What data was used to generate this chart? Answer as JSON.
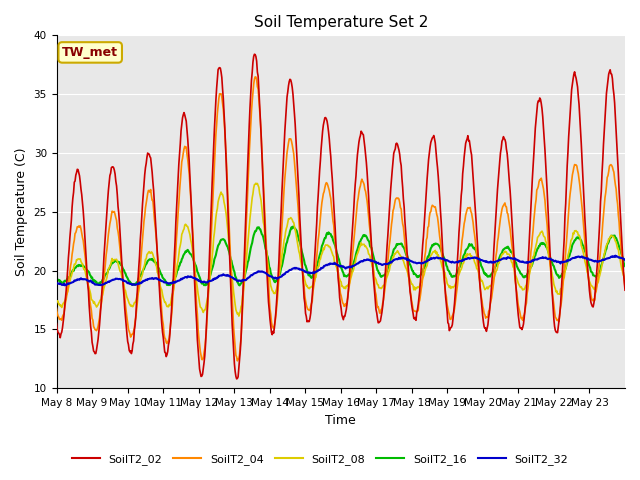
{
  "title": "Soil Temperature Set 2",
  "xlabel": "Time",
  "ylabel": "Soil Temperature (C)",
  "ylim": [
    10,
    40
  ],
  "plot_bg_color": "#e8e8e8",
  "fig_bg_color": "#ffffff",
  "annotation_text": "TW_met",
  "annotation_color": "#880000",
  "annotation_bg": "#ffffcc",
  "annotation_border": "#ccaa00",
  "x_tick_labels": [
    "May 8",
    "May 9",
    "May 10",
    "May 11",
    "May 12",
    "May 13",
    "May 14",
    "May 15",
    "May 16",
    "May 17",
    "May 18",
    "May 19",
    "May 20",
    "May 21",
    "May 22",
    "May 23"
  ],
  "series": {
    "SoilT2_02": {
      "color": "#cc0000",
      "lw": 1.2
    },
    "SoilT2_04": {
      "color": "#ff8800",
      "lw": 1.2
    },
    "SoilT2_08": {
      "color": "#ddcc00",
      "lw": 1.2
    },
    "SoilT2_16": {
      "color": "#00bb00",
      "lw": 1.5
    },
    "SoilT2_32": {
      "color": "#0000cc",
      "lw": 1.5
    }
  },
  "legend_order": [
    "SoilT2_02",
    "SoilT2_04",
    "SoilT2_08",
    "SoilT2_16",
    "SoilT2_32"
  ],
  "yticks": [
    10,
    15,
    20,
    25,
    30,
    35,
    40
  ],
  "grid_color": "#ffffff",
  "title_fontsize": 11,
  "label_fontsize": 9,
  "tick_fontsize": 7.5
}
